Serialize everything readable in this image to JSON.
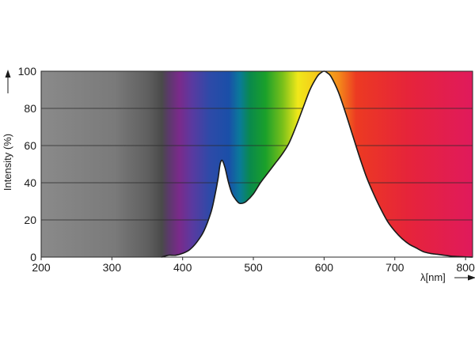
{
  "chart_data": {
    "type": "area",
    "title": "",
    "xlabel": "λ[nm]",
    "ylabel": "Intensity (%)",
    "xlim": [
      200,
      810
    ],
    "ylim": [
      0,
      100
    ],
    "x_ticks": [
      200,
      300,
      400,
      500,
      600,
      700,
      800
    ],
    "y_ticks": [
      0,
      20,
      40,
      60,
      80,
      100
    ],
    "grid": "horizontal",
    "background": "visible light spectrum gradient (grey UV region, violet to red)",
    "series": [
      {
        "x": [
          370,
          380,
          390,
          400,
          410,
          420,
          430,
          440,
          445,
          450,
          453,
          456,
          460,
          465,
          470,
          475,
          480,
          485,
          490,
          500,
          510,
          520,
          530,
          540,
          550,
          560,
          570,
          580,
          590,
          595,
          600,
          605,
          610,
          620,
          630,
          640,
          650,
          660,
          670,
          680,
          690,
          700,
          710,
          720,
          730,
          740,
          750,
          760,
          770,
          780,
          790,
          800,
          810
        ],
        "y": [
          0,
          1,
          1,
          2,
          4,
          8,
          14,
          24,
          32,
          42,
          50,
          52,
          48,
          40,
          34,
          31,
          29,
          29,
          30,
          34,
          40,
          45,
          50,
          55,
          61,
          70,
          80,
          90,
          97,
          99,
          100,
          99,
          97,
          89,
          78,
          66,
          54,
          43,
          34,
          26,
          19,
          14,
          10,
          7,
          5,
          3,
          2,
          1.5,
          1,
          0.5,
          0.3,
          0.1,
          0
        ]
      }
    ]
  }
}
